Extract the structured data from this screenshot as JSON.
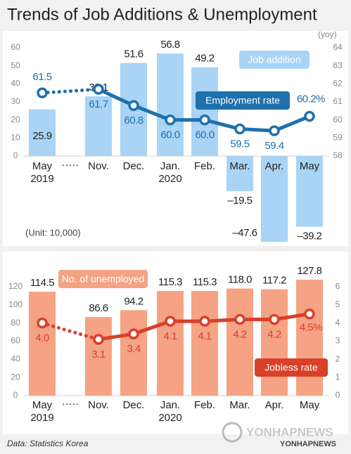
{
  "title": "Trends of Job Additions & Unemployment",
  "source": "Data: Statistics Korea",
  "watermark": [
    "YONHAPNEWS",
    "YONHAPNEWS"
  ],
  "chart_data": [
    {
      "type": "bar",
      "y2_label": "(yoy)",
      "unit": "(Unit: 10,000)",
      "gap_marker": "·····",
      "categories": [
        "May\n2019",
        "Nov.",
        "Dec.",
        "Jan.\n2020",
        "Feb.",
        "Mar.",
        "Apr.",
        "May"
      ],
      "series": [
        {
          "name": "Job addition",
          "type": "bar",
          "color": "#a9d4f5",
          "values": [
            25.9,
            33.1,
            51.6,
            56.8,
            49.2,
            -19.5,
            -47.6,
            -39.2
          ],
          "value_labels": [
            "25.9",
            "33.1",
            "51.6",
            "56.8",
            "49.2",
            "–19.5",
            "–47.6",
            "–39.2"
          ]
        },
        {
          "name": "Employment rate",
          "type": "line",
          "axis": "y2",
          "color": "#1f70ad",
          "values": [
            61.5,
            61.7,
            60.8,
            60.0,
            60.0,
            59.5,
            59.4,
            60.2
          ],
          "value_labels": [
            "61.5",
            "61.7",
            "60.8",
            "60.0",
            "60.0",
            "59.5",
            "59.4",
            "60.2%"
          ]
        }
      ],
      "ylim": [
        0,
        60
      ],
      "yticks": [
        0,
        10,
        20,
        30,
        40,
        50,
        60
      ],
      "y2lim": [
        58,
        64
      ],
      "y2ticks": [
        58,
        59,
        60,
        61,
        62,
        63,
        64
      ]
    },
    {
      "type": "bar",
      "gap_marker": "·····",
      "categories": [
        "May\n2019",
        "Nov.",
        "Dec.",
        "Jan.\n2020",
        "Feb.",
        "Mar.",
        "Apr.",
        "May"
      ],
      "series": [
        {
          "name": "No. of unemployed",
          "type": "bar",
          "color": "#f5a384",
          "values": [
            114.5,
            86.6,
            94.2,
            115.3,
            115.3,
            118.0,
            117.2,
            127.8
          ],
          "value_labels": [
            "114.5",
            "86.6",
            "94.2",
            "115.3",
            "115.3",
            "118.0",
            "117.2",
            "127.8"
          ]
        },
        {
          "name": "Jobless rate",
          "type": "line",
          "axis": "y2",
          "color": "#d8402a",
          "values": [
            4.0,
            3.1,
            3.4,
            4.1,
            4.1,
            4.2,
            4.2,
            4.5
          ],
          "value_labels": [
            "4.0",
            "3.1",
            "3.4",
            "4.1",
            "4.1",
            "4.2",
            "4.2",
            "4.5%"
          ]
        }
      ],
      "ylim": [
        0,
        120
      ],
      "yticks": [
        0,
        20,
        40,
        60,
        80,
        100,
        120
      ],
      "y2lim": [
        0,
        6
      ],
      "y2ticks": [
        0,
        1,
        2,
        3,
        4,
        5,
        6
      ]
    }
  ]
}
